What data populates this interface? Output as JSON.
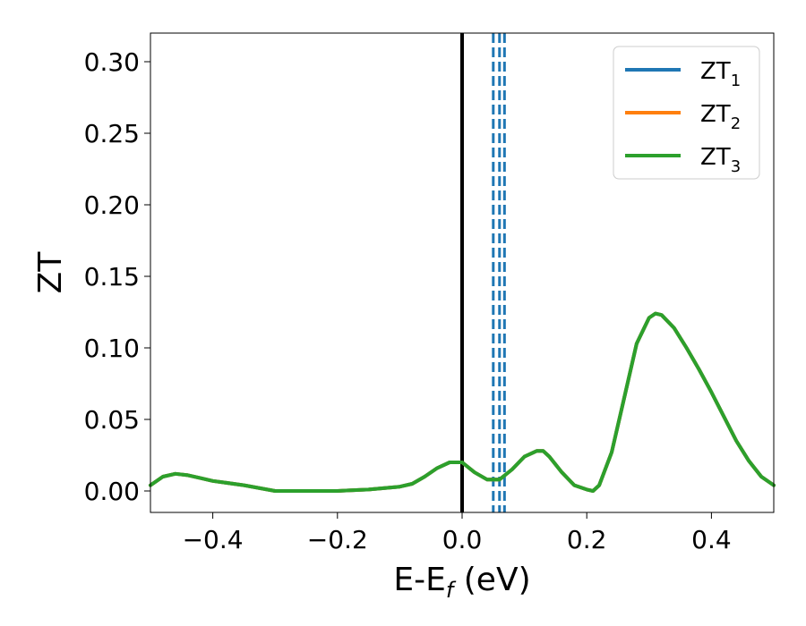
{
  "chart_data": {
    "type": "line",
    "xlabel": {
      "main": "E-E",
      "sub": "f",
      "tail": " (eV)"
    },
    "ylabel": "ZT",
    "xlim": [
      -0.5,
      0.5
    ],
    "ylim": [
      -0.015,
      0.32
    ],
    "xticks": [
      -0.4,
      -0.2,
      0.0,
      0.2,
      0.4
    ],
    "xtick_labels": [
      "−0.4",
      "−0.2",
      "0.0",
      "0.2",
      "0.4"
    ],
    "yticks": [
      0.0,
      0.05,
      0.1,
      0.15,
      0.2,
      0.25,
      0.3
    ],
    "ytick_labels": [
      "0.00",
      "0.05",
      "0.10",
      "0.15",
      "0.20",
      "0.25",
      "0.30"
    ],
    "grid": false,
    "legend_position": "top-right",
    "vertical_line": {
      "x": 0.0,
      "color": "#000000",
      "style": "solid"
    },
    "dashed_lines": {
      "x": [
        0.05,
        0.06,
        0.068
      ],
      "color": "#1f77b4",
      "style": "dashed"
    },
    "x": [
      -0.5,
      -0.48,
      -0.46,
      -0.44,
      -0.42,
      -0.4,
      -0.35,
      -0.3,
      -0.25,
      -0.2,
      -0.15,
      -0.1,
      -0.08,
      -0.06,
      -0.04,
      -0.02,
      0.0,
      0.02,
      0.04,
      0.06,
      0.08,
      0.1,
      0.12,
      0.13,
      0.14,
      0.16,
      0.18,
      0.2,
      0.21,
      0.22,
      0.24,
      0.26,
      0.28,
      0.3,
      0.31,
      0.32,
      0.34,
      0.36,
      0.38,
      0.4,
      0.42,
      0.44,
      0.46,
      0.48,
      0.5
    ],
    "series": [
      {
        "name": "ZT",
        "sub": "1",
        "color": "#1f77b4",
        "values": [
          0.004,
          0.01,
          0.012,
          0.011,
          0.009,
          0.007,
          0.004,
          0.0,
          0.0,
          0.0,
          0.001,
          0.003,
          0.005,
          0.01,
          0.016,
          0.02,
          0.02,
          0.013,
          0.008,
          0.008,
          0.015,
          0.024,
          0.028,
          0.028,
          0.024,
          0.013,
          0.004,
          0.001,
          0.0,
          0.004,
          0.027,
          0.065,
          0.103,
          0.121,
          0.124,
          0.123,
          0.114,
          0.1,
          0.085,
          0.069,
          0.052,
          0.035,
          0.021,
          0.01,
          0.004
        ]
      },
      {
        "name": "ZT",
        "sub": "2",
        "color": "#ff7f0e",
        "values": [
          0.004,
          0.01,
          0.012,
          0.011,
          0.009,
          0.007,
          0.004,
          0.0,
          0.0,
          0.0,
          0.001,
          0.003,
          0.005,
          0.01,
          0.016,
          0.02,
          0.02,
          0.013,
          0.008,
          0.008,
          0.015,
          0.024,
          0.028,
          0.028,
          0.024,
          0.013,
          0.004,
          0.001,
          0.0,
          0.004,
          0.027,
          0.065,
          0.103,
          0.121,
          0.124,
          0.123,
          0.114,
          0.1,
          0.085,
          0.069,
          0.052,
          0.035,
          0.021,
          0.01,
          0.004
        ]
      },
      {
        "name": "ZT",
        "sub": "3",
        "color": "#2ca02c",
        "values": [
          0.004,
          0.01,
          0.012,
          0.011,
          0.009,
          0.007,
          0.004,
          0.0,
          0.0,
          0.0,
          0.001,
          0.003,
          0.005,
          0.01,
          0.016,
          0.02,
          0.02,
          0.013,
          0.008,
          0.008,
          0.015,
          0.024,
          0.028,
          0.028,
          0.024,
          0.013,
          0.004,
          0.001,
          0.0,
          0.004,
          0.027,
          0.065,
          0.103,
          0.121,
          0.124,
          0.123,
          0.114,
          0.1,
          0.085,
          0.069,
          0.052,
          0.035,
          0.021,
          0.01,
          0.004
        ]
      }
    ]
  }
}
